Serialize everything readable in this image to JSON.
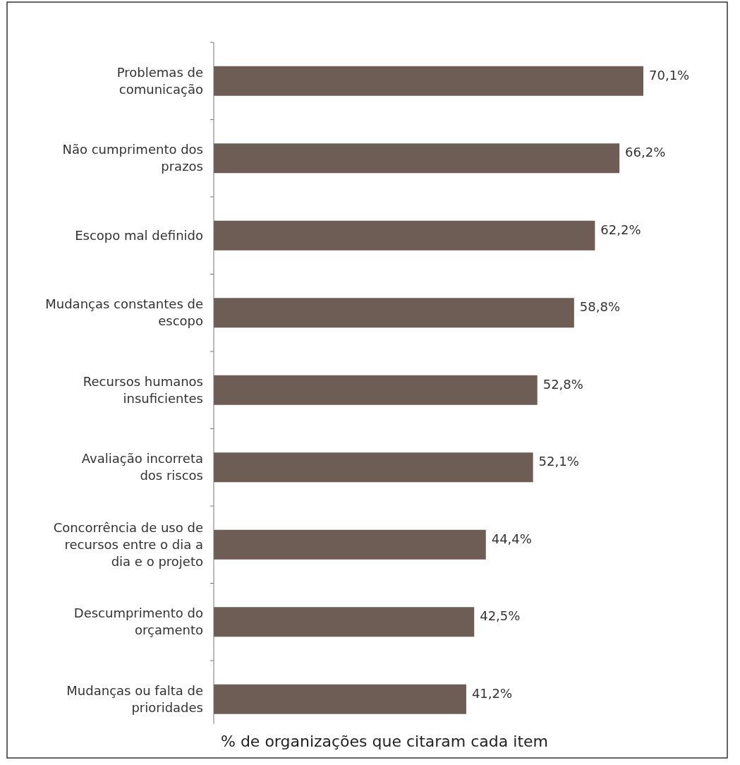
{
  "chart_data": {
    "type": "bar",
    "orientation": "horizontal",
    "xlabel": "% de  organizações que citaram cada item",
    "categories": [
      "Problemas de comunicação",
      "Não cumprimento dos prazos",
      "Escopo mal definido",
      "Mudanças constantes de escopo",
      "Recursos humanos insuficientes",
      "Avaliação incorreta dos riscos",
      "Concorrência de uso de recursos entre o dia a dia e o projeto",
      "Descumprimento do orçamento",
      "Mudanças ou falta de prioridades"
    ],
    "values": [
      70.1,
      66.2,
      62.2,
      58.8,
      52.8,
      52.1,
      44.4,
      42.5,
      41.2
    ],
    "value_labels": [
      "70,1%",
      "66,2%",
      "62,2%",
      "58,8%",
      "52,8%",
      "52,1%",
      "44,4%",
      "42,5%",
      "41,2%"
    ],
    "color": "#6e5d55"
  }
}
